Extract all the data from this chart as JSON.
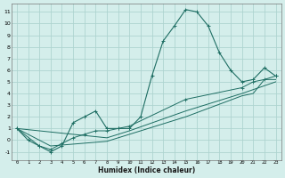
{
  "xlabel": "Humidex (Indice chaleur)",
  "bg_color": "#d4eeeb",
  "grid_color": "#aed4d0",
  "line_color": "#1e6e63",
  "xlim": [
    -0.5,
    23.5
  ],
  "ylim": [
    -1.7,
    11.7
  ],
  "xticks": [
    0,
    1,
    2,
    3,
    4,
    5,
    6,
    7,
    8,
    9,
    10,
    11,
    12,
    13,
    14,
    15,
    16,
    17,
    18,
    19,
    20,
    21,
    22,
    23
  ],
  "yticks": [
    -1,
    0,
    1,
    2,
    3,
    4,
    5,
    6,
    7,
    8,
    9,
    10,
    11
  ],
  "series1": [
    [
      0,
      1
    ],
    [
      1,
      0
    ],
    [
      2,
      -0.5
    ],
    [
      3,
      -1
    ],
    [
      4,
      -0.5
    ],
    [
      5,
      1.5
    ],
    [
      6,
      2
    ],
    [
      7,
      2.5
    ],
    [
      8,
      1
    ],
    [
      9,
      1
    ],
    [
      10,
      1
    ],
    [
      11,
      2
    ],
    [
      12,
      5.5
    ],
    [
      13,
      8.5
    ],
    [
      14,
      9.8
    ],
    [
      15,
      11.2
    ],
    [
      16,
      11.0
    ],
    [
      17,
      9.8
    ],
    [
      18,
      7.5
    ],
    [
      19,
      6.0
    ],
    [
      20,
      5.0
    ],
    [
      21,
      5.2
    ],
    [
      22,
      6.2
    ],
    [
      23,
      5.5
    ]
  ],
  "series2": [
    [
      0,
      1
    ],
    [
      2,
      -0.5
    ],
    [
      3,
      -0.8
    ],
    [
      4,
      -0.3
    ],
    [
      5,
      0.2
    ],
    [
      6,
      0.5
    ],
    [
      7,
      0.8
    ],
    [
      8,
      0.8
    ],
    [
      9,
      1.0
    ],
    [
      10,
      1.2
    ],
    [
      15,
      3.5
    ],
    [
      20,
      4.5
    ],
    [
      21,
      5.0
    ],
    [
      22,
      5.2
    ],
    [
      23,
      5.5
    ]
  ],
  "series3": [
    [
      0,
      1
    ],
    [
      8,
      0.2
    ],
    [
      10,
      0.8
    ],
    [
      15,
      2.5
    ],
    [
      20,
      4.0
    ],
    [
      23,
      5.0
    ]
  ],
  "series4": [
    [
      0,
      1
    ],
    [
      3,
      -0.5
    ],
    [
      8,
      -0.1
    ],
    [
      10,
      0.5
    ],
    [
      15,
      2.0
    ],
    [
      20,
      3.8
    ],
    [
      21,
      4.0
    ],
    [
      22,
      5.2
    ],
    [
      23,
      5.2
    ]
  ]
}
